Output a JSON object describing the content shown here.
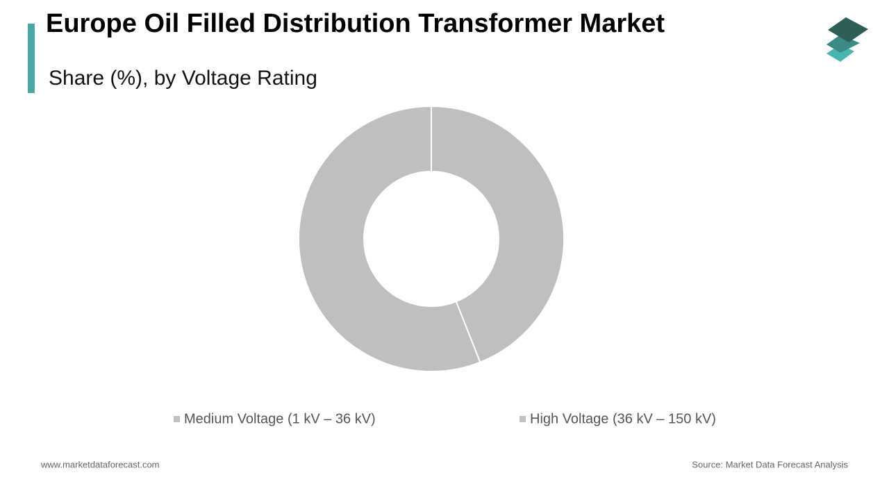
{
  "chart_data": {
    "type": "pie",
    "title": "Europe Oil Filled Distribution Transformer Market",
    "subtitle": "Share (%), by Voltage Rating",
    "categories": [
      "Medium Voltage (1 kV – 36 kV)",
      "High Voltage (36 kV – 150 kV)"
    ],
    "values": [
      44,
      56
    ],
    "colors": [
      "#bfbfbf",
      "#bfbfbf"
    ],
    "donut": true,
    "legend": "bottom",
    "website": "www.marketdataforecast.com",
    "source": "Source: Market Data Forecast Analysis"
  }
}
